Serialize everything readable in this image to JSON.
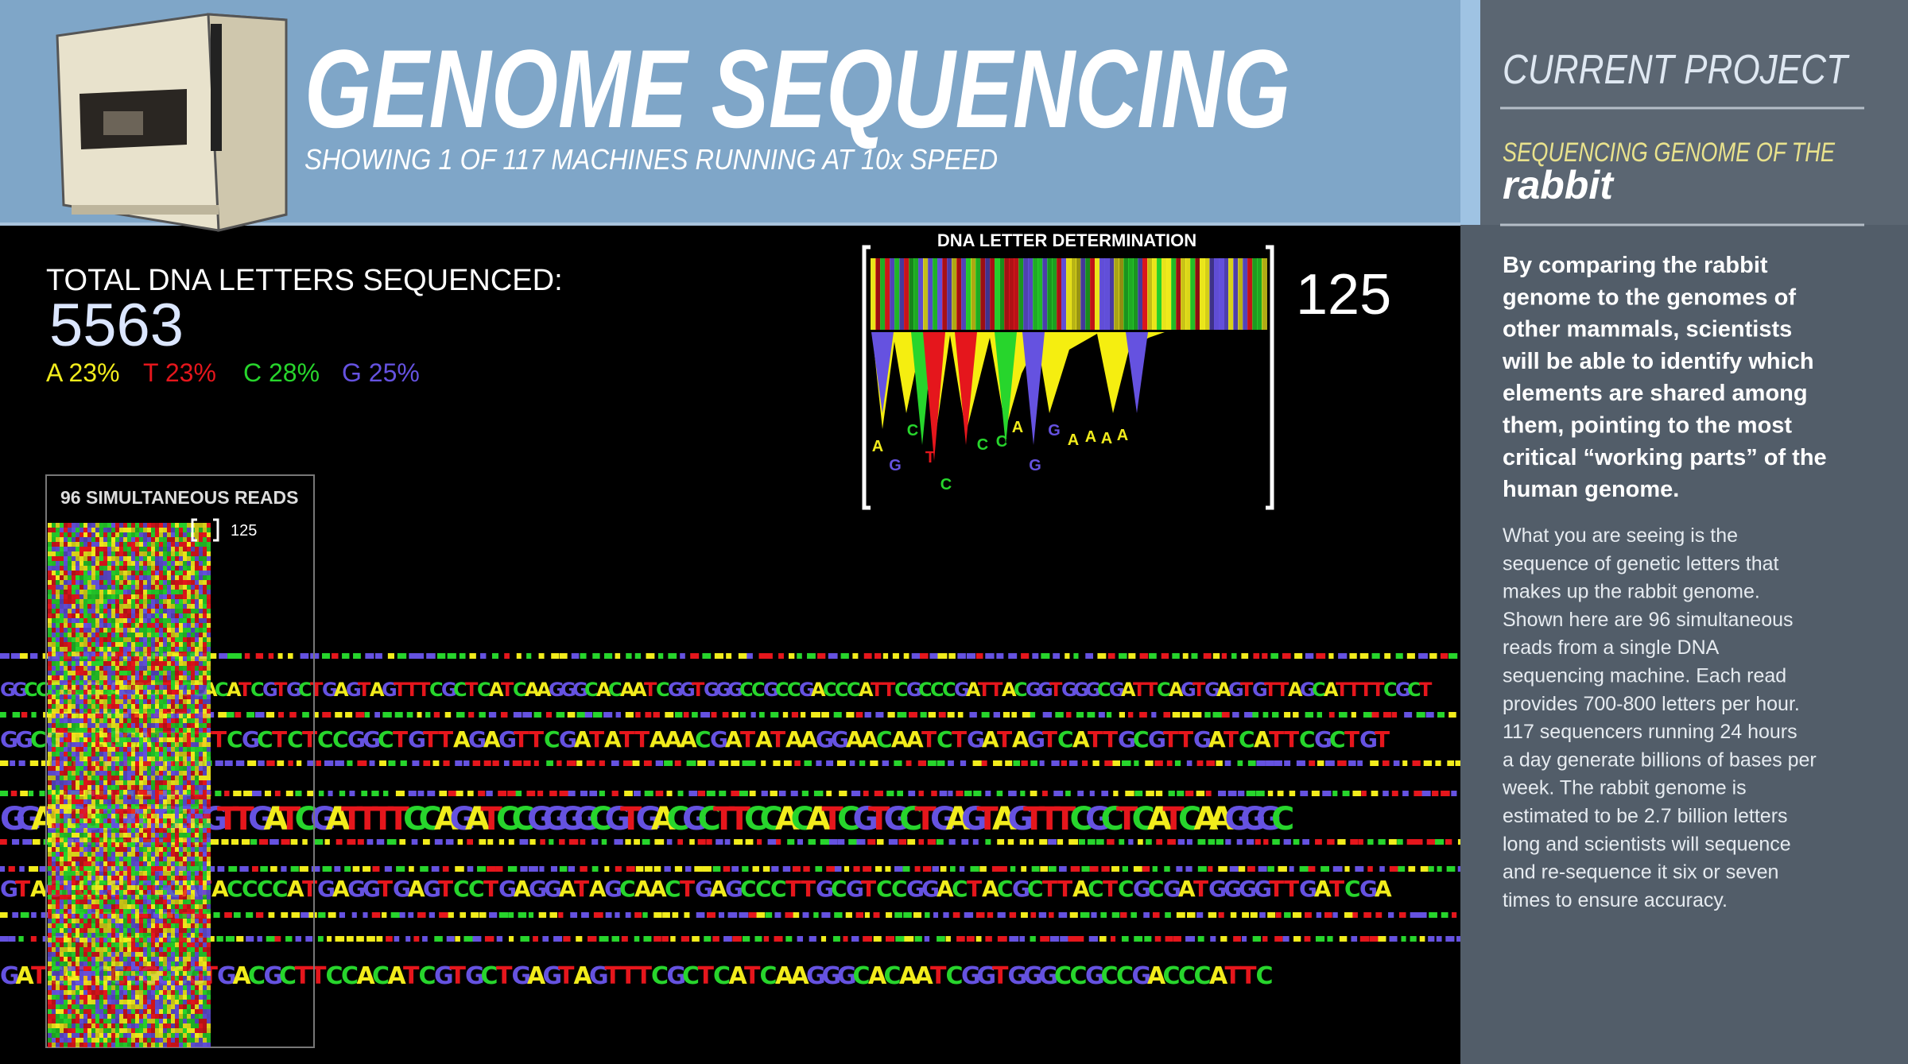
{
  "header": {
    "title": "GENOME SEQUENCING",
    "subtitle": "SHOWING 1 OF 117 MACHINES RUNNING AT 10x SPEED"
  },
  "stats": {
    "label": "TOTAL DNA LETTERS SEQUENCED:",
    "total": "5563",
    "composition": [
      "A 23%",
      "T 23%",
      "C 28%",
      "G 25%"
    ]
  },
  "determination": {
    "title": "DNA LETTER DETERMINATION",
    "position": "125",
    "calls": [
      "A",
      "G",
      "C",
      "T",
      "C",
      "C",
      "C",
      "A",
      "G",
      "G",
      "A",
      "A",
      "A",
      "A"
    ]
  },
  "reads": {
    "title": "96 SIMULTANEOUS READS",
    "position": "125"
  },
  "sequences": [
    "GGCCCGCGCACCCTTCCACATCGTGCTGAGTAGTTTCGCTCATCAAGGGCACAATCGGTGGGCCGCCGACCCATTCGCCCGATTACGGTGGGCGATTCAGTGAGTGTTAGCATTTTCGCT",
    "GGCGTTAGCATTTTTCGCTCTCCGGCTGTTAGAGTTCGATATTAAACGATATAAGGAACAATCTGATAGTCATTGCGTTGATCATTCGCTGT",
    "GGATCGCGATGGGGTTGATCGATTTTCCAGATCCGGGGCGTGACGCTTCCACATCGTGCTGAGTAGTTTCGCTCATCAAGGGC",
    "GTAGTCCGTCGCATACCCCATGAGGTGAGTCCTGAGGATAGCAACTGAGCCCTTGCGTCCGGACTACGCTTACTCGCGATGGGGTTGATCGA",
    "GATCATCCGGGCGTGACGCTTCCACATCGTGCTGAGTAGTTTCGCTCATCAAGGGCACAATCGGTGGGCCGCCGACCCATTC"
  ],
  "project": {
    "heading": "CURRENT PROJECT",
    "subheading": "SEQUENCING GENOME OF THE",
    "organism": "rabbit",
    "summary": [
      "By comparing the rabbit",
      "genome to the genomes of",
      "other mammals, scientists",
      "will be able to identify which",
      "elements are shared among",
      "them, pointing to the most",
      "critical “working parts” of the",
      "human genome."
    ],
    "description": [
      "What you are seeing is the",
      "sequence of genetic letters that",
      "makes up the rabbit genome.",
      "Shown here are 96 simultaneous",
      "reads from a single DNA",
      "sequencing machine. Each read",
      "provides 700-800 letters per hour.",
      "117 sequencers running 24 hours",
      "a day generate billions of bases per",
      "week. The rabbit genome is",
      "estimated to be 2.7 billion letters",
      "long and scientists will sequence",
      "and re-sequence it six or seven",
      "times to ensure accuracy."
    ]
  }
}
